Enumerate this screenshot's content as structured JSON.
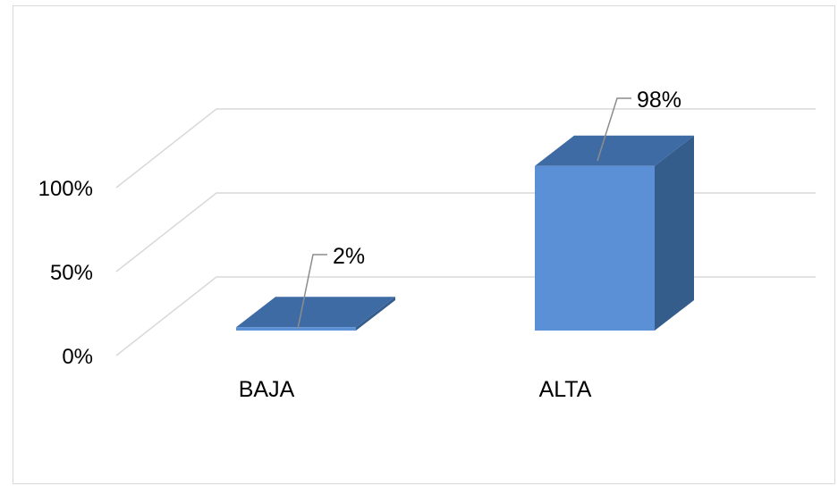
{
  "chart_data": {
    "type": "bar",
    "categories": [
      "BAJA",
      "ALTA"
    ],
    "values": [
      2,
      98
    ],
    "data_labels": [
      "2%",
      "98%"
    ],
    "yticks": [
      "0%",
      "50%",
      "100%"
    ],
    "ylim": [
      0,
      100
    ],
    "grid": true,
    "style": "3d-column",
    "title": "",
    "xlabel": "",
    "ylabel": ""
  },
  "colors": {
    "bar_front": "#5b8fd6",
    "bar_top": "#3f6ba5",
    "bar_side": "#355d8c",
    "gridline": "#d9d9d9",
    "leader": "#8c8c8c",
    "frame": "#d9d9d9"
  }
}
